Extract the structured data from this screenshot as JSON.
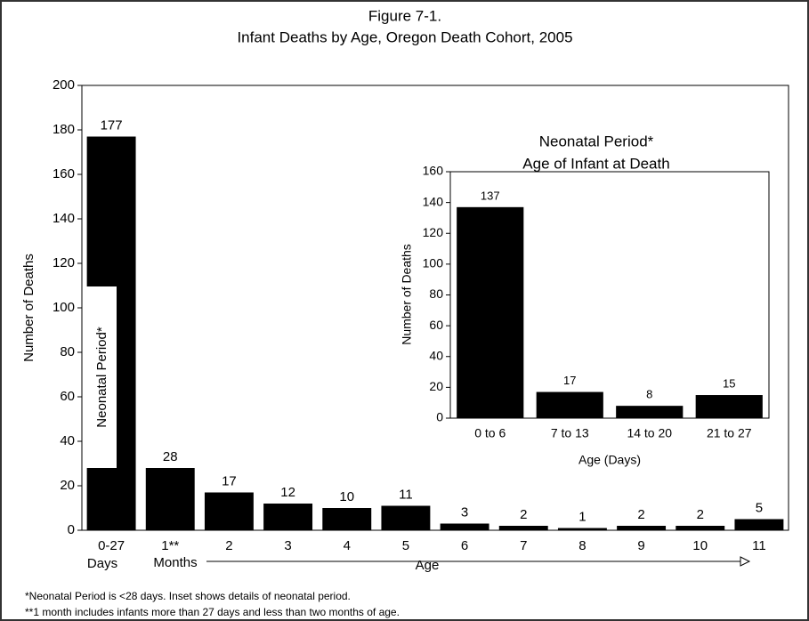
{
  "chart_data": [
    {
      "type": "bar",
      "title": "Figure 7-1.",
      "subtitle": "Infant Deaths by Age, Oregon Death Cohort, 2005",
      "ylabel": "Number of Deaths",
      "categories": [
        "0-27",
        "1**",
        "2",
        "3",
        "4",
        "5",
        "6",
        "7",
        "8",
        "9",
        "10",
        "11"
      ],
      "values": [
        177,
        28,
        17,
        12,
        10,
        11,
        3,
        2,
        1,
        2,
        2,
        5
      ],
      "color": "#000000",
      "ylim": [
        0,
        200
      ],
      "yticks": [
        0,
        20,
        40,
        60,
        80,
        100,
        120,
        140,
        160,
        180,
        200
      ],
      "annotations": [
        "Days",
        "Months",
        "Age",
        "Neonatal Period*"
      ],
      "footnotes": [
        "*Neonatal Period is <28 days.  Inset shows details of neonatal period.",
        "**1 month includes infants more than 27 days and less than two months of age."
      ]
    },
    {
      "type": "bar",
      "title": "Neonatal Period*",
      "subtitle": "Age of Infant at Death",
      "ylabel": "Number of Deaths",
      "xlabel": "Age (Days)",
      "categories": [
        "0 to 6",
        "7 to 13",
        "14 to 20",
        "21 to 27"
      ],
      "values": [
        137,
        17,
        8,
        15
      ],
      "color": "#000000",
      "ylim": [
        0,
        160
      ],
      "yticks": [
        0,
        20,
        40,
        60,
        80,
        100,
        120,
        140,
        160
      ]
    }
  ]
}
